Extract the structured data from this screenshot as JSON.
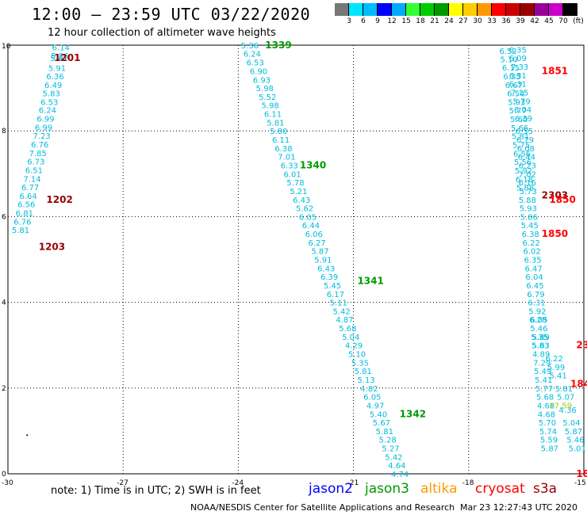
{
  "header": {
    "title": "12:00 – 23:59 UTC 03/22/2020",
    "subtitle": "12 hour collection of altimeter wave heights"
  },
  "color_scale": {
    "unit_label": "(ft)",
    "colors": [
      "#777777",
      "#00e5ff",
      "#00bbff",
      "#0000ff",
      "#00aaff",
      "#33ff33",
      "#00cc00",
      "#009900",
      "#ffff00",
      "#ffcc00",
      "#ff9900",
      "#ff0000",
      "#cc0000",
      "#990000",
      "#990099",
      "#cc00cc",
      "#000000"
    ],
    "labels": [
      "3",
      "6",
      "9",
      "12",
      "15",
      "18",
      "21",
      "24",
      "27",
      "30",
      "33",
      "36",
      "39",
      "42",
      "45",
      "70"
    ]
  },
  "note": "note:  1) Time is in UTC;  2) SWH is in feet",
  "satellites": [
    {
      "name": "jason2",
      "color": "#0000ff"
    },
    {
      "name": "jason3",
      "color": "#009900"
    },
    {
      "name": "altika",
      "color": "#ff9900"
    },
    {
      "name": "cryosat",
      "color": "#ff0000"
    },
    {
      "name": "s3a",
      "color": "#990000"
    }
  ],
  "footer": {
    "credit": "NOAA/NESDIS Center for Satellite Applications and Research",
    "generated": "Mar 23 12:27:43 UTC 2020"
  },
  "chart_data": {
    "type": "scatter",
    "xlim": [
      -30,
      -15
    ],
    "ylim": [
      0,
      10
    ],
    "x_ticks": [
      "-30",
      "-27",
      "-24",
      "-21",
      "-18",
      "-15"
    ],
    "y_ticks": [
      "0",
      "2",
      "4",
      "6",
      "8",
      "10"
    ],
    "grid": true,
    "value_color": "#00bbdd",
    "passes": [
      {
        "label": "1201",
        "color": "#990000",
        "x": -28.8,
        "y": 9.7
      },
      {
        "label": "1202",
        "color": "#990000",
        "x": -29.0,
        "y": 6.4
      },
      {
        "label": "1203",
        "color": "#990000",
        "x": -29.2,
        "y": 5.3
      },
      {
        "label": "1339",
        "color": "#009900",
        "x": -23.3,
        "y": 10.0
      },
      {
        "label": "1340",
        "color": "#009900",
        "x": -22.4,
        "y": 7.2
      },
      {
        "label": "1341",
        "color": "#009900",
        "x": -20.9,
        "y": 4.5
      },
      {
        "label": "1342",
        "color": "#009900",
        "x": -19.8,
        "y": 1.4
      },
      {
        "label": "1851",
        "color": "#ff0000",
        "x": -16.1,
        "y": 9.4
      },
      {
        "label": "2303",
        "color": "#990000",
        "x": -16.1,
        "y": 6.5
      },
      {
        "label": "1850",
        "color": "#ff0000",
        "x": -16.1,
        "y": 5.6
      },
      {
        "label": "1850",
        "color": "#ff0000",
        "x": -15.9,
        "y": 6.4
      },
      {
        "label": "23",
        "color": "#ff0000",
        "x": -15.2,
        "y": 3.0
      },
      {
        "label": "184",
        "color": "#ff0000",
        "x": -15.35,
        "y": 2.1
      },
      {
        "label": "18",
        "color": "#ff0000",
        "x": -15.2,
        "y": 0.0
      }
    ],
    "tracks": [
      {
        "name": "track-1200",
        "points": [
          {
            "x": -28.85,
            "y": 9.95,
            "v": "6.14"
          },
          {
            "x": -28.88,
            "y": 9.76,
            "v": "5.86"
          },
          {
            "x": -28.9,
            "y": 9.7,
            "v": "5.41"
          },
          {
            "x": -28.95,
            "y": 9.47,
            "v": "5.91"
          },
          {
            "x": -29.0,
            "y": 9.28,
            "v": "6.36"
          },
          {
            "x": -29.05,
            "y": 9.08,
            "v": "6.49"
          },
          {
            "x": -29.1,
            "y": 8.88,
            "v": "5.83"
          },
          {
            "x": -29.15,
            "y": 8.68,
            "v": "6.53"
          },
          {
            "x": -29.2,
            "y": 8.49,
            "v": "6.24"
          },
          {
            "x": -29.25,
            "y": 8.29,
            "v": "6.99"
          },
          {
            "x": -29.3,
            "y": 8.09,
            "v": "6.99"
          },
          {
            "x": -29.35,
            "y": 7.89,
            "v": "7.23"
          },
          {
            "x": -29.4,
            "y": 7.69,
            "v": "6.76"
          },
          {
            "x": -29.45,
            "y": 7.49,
            "v": "7.85"
          },
          {
            "x": -29.5,
            "y": 7.29,
            "v": "6.73"
          },
          {
            "x": -29.55,
            "y": 7.09,
            "v": "6.51"
          },
          {
            "x": -29.6,
            "y": 6.89,
            "v": "7.14"
          },
          {
            "x": -29.65,
            "y": 6.69,
            "v": "6.77"
          },
          {
            "x": -29.7,
            "y": 6.49,
            "v": "6.64"
          },
          {
            "x": -29.75,
            "y": 6.29,
            "v": "6.56"
          },
          {
            "x": -29.8,
            "y": 6.09,
            "v": "6.81"
          },
          {
            "x": -29.85,
            "y": 5.89,
            "v": "6.76"
          },
          {
            "x": -29.9,
            "y": 5.69,
            "v": "5.81"
          }
        ]
      },
      {
        "name": "track-1339",
        "points": [
          {
            "x": -23.93,
            "y": 10.0,
            "v": "5.36"
          },
          {
            "x": -23.87,
            "y": 9.81,
            "v": "6.24"
          },
          {
            "x": -23.79,
            "y": 9.6,
            "v": "6.53"
          },
          {
            "x": -23.7,
            "y": 9.4,
            "v": "6.90"
          },
          {
            "x": -23.62,
            "y": 9.2,
            "v": "6.93"
          },
          {
            "x": -23.54,
            "y": 9.0,
            "v": "5.98"
          },
          {
            "x": -23.47,
            "y": 8.8,
            "v": "5.52"
          },
          {
            "x": -23.4,
            "y": 8.6,
            "v": "5.98"
          },
          {
            "x": -23.33,
            "y": 8.4,
            "v": "6.11"
          },
          {
            "x": -23.26,
            "y": 8.2,
            "v": "5.81"
          },
          {
            "x": -23.18,
            "y": 8.0,
            "v": "5.80"
          },
          {
            "x": -23.12,
            "y": 7.8,
            "v": "6.11"
          },
          {
            "x": -23.05,
            "y": 7.6,
            "v": "6.38"
          },
          {
            "x": -22.97,
            "y": 7.4,
            "v": "7.01"
          },
          {
            "x": -22.9,
            "y": 7.2,
            "v": "6.33"
          },
          {
            "x": -22.82,
            "y": 7.0,
            "v": "6.01"
          },
          {
            "x": -22.74,
            "y": 6.8,
            "v": "5.78"
          },
          {
            "x": -22.66,
            "y": 6.6,
            "v": "5.21"
          },
          {
            "x": -22.58,
            "y": 6.4,
            "v": "6.43"
          },
          {
            "x": -22.5,
            "y": 6.2,
            "v": "5.62"
          },
          {
            "x": -22.42,
            "y": 6.0,
            "v": "6.05"
          },
          {
            "x": -22.34,
            "y": 5.8,
            "v": "6.44"
          },
          {
            "x": -22.26,
            "y": 5.6,
            "v": "6.06"
          },
          {
            "x": -22.18,
            "y": 5.4,
            "v": "6.27"
          },
          {
            "x": -22.1,
            "y": 5.2,
            "v": "5.87"
          },
          {
            "x": -22.02,
            "y": 5.0,
            "v": "5.91"
          },
          {
            "x": -21.94,
            "y": 4.8,
            "v": "6.43"
          },
          {
            "x": -21.86,
            "y": 4.6,
            "v": "6.39"
          },
          {
            "x": -21.78,
            "y": 4.4,
            "v": "5.45"
          },
          {
            "x": -21.7,
            "y": 4.2,
            "v": "6.17"
          },
          {
            "x": -21.62,
            "y": 4.0,
            "v": "5.11"
          },
          {
            "x": -21.54,
            "y": 3.8,
            "v": "5.42"
          },
          {
            "x": -21.46,
            "y": 3.6,
            "v": "4.87"
          },
          {
            "x": -21.38,
            "y": 3.4,
            "v": "5.68"
          },
          {
            "x": -21.3,
            "y": 3.2,
            "v": "5.04"
          },
          {
            "x": -21.22,
            "y": 3.0,
            "v": "4.29"
          },
          {
            "x": -21.14,
            "y": 2.8,
            "v": "5.10"
          },
          {
            "x": -21.06,
            "y": 2.6,
            "v": "5.35"
          },
          {
            "x": -20.98,
            "y": 2.4,
            "v": "5.81"
          },
          {
            "x": -20.9,
            "y": 2.2,
            "v": "5.13"
          },
          {
            "x": -20.82,
            "y": 2.0,
            "v": "4.82"
          },
          {
            "x": -20.74,
            "y": 1.8,
            "v": "6.05"
          },
          {
            "x": -20.66,
            "y": 1.6,
            "v": "4.97"
          },
          {
            "x": -20.58,
            "y": 1.4,
            "v": "5.40"
          },
          {
            "x": -20.5,
            "y": 1.2,
            "v": "5.67"
          },
          {
            "x": -20.42,
            "y": 1.0,
            "v": "5.81"
          },
          {
            "x": -20.34,
            "y": 0.8,
            "v": "5.28"
          },
          {
            "x": -20.26,
            "y": 0.6,
            "v": "5.27"
          },
          {
            "x": -20.18,
            "y": 0.4,
            "v": "5.42"
          },
          {
            "x": -20.1,
            "y": 0.2,
            "v": "4.64"
          },
          {
            "x": -20.02,
            "y": 0.0,
            "v": "4.74"
          }
        ]
      },
      {
        "name": "track-1851",
        "points": [
          {
            "x": -17.2,
            "y": 9.87,
            "v": "6.52"
          },
          {
            "x": -16.95,
            "y": 9.9,
            "v": "6.35"
          },
          {
            "x": -17.18,
            "y": 9.68,
            "v": "5.10"
          },
          {
            "x": -16.95,
            "y": 9.7,
            "v": "6.09"
          },
          {
            "x": -17.13,
            "y": 9.48,
            "v": "6.15"
          },
          {
            "x": -16.9,
            "y": 9.5,
            "v": "7.33"
          },
          {
            "x": -17.1,
            "y": 9.28,
            "v": "6.35"
          },
          {
            "x": -16.95,
            "y": 9.3,
            "v": "6.31"
          },
          {
            "x": -17.05,
            "y": 9.08,
            "v": "6.67"
          },
          {
            "x": -16.95,
            "y": 9.1,
            "v": "6.31"
          },
          {
            "x": -17.0,
            "y": 8.88,
            "v": "6.54"
          },
          {
            "x": -16.9,
            "y": 8.9,
            "v": "7.15"
          },
          {
            "x": -16.98,
            "y": 8.68,
            "v": "5.93"
          },
          {
            "x": -16.85,
            "y": 8.7,
            "v": "5.79"
          },
          {
            "x": -16.95,
            "y": 8.48,
            "v": "5.77"
          },
          {
            "x": -16.82,
            "y": 8.5,
            "v": "6.04"
          },
          {
            "x": -16.92,
            "y": 8.28,
            "v": "5.60"
          },
          {
            "x": -16.8,
            "y": 8.3,
            "v": "6.39"
          },
          {
            "x": -16.9,
            "y": 8.08,
            "v": "5.66"
          },
          {
            "x": -16.78,
            "y": 8.0,
            "v": "6.55"
          },
          {
            "x": -16.88,
            "y": 7.88,
            "v": "5.81"
          },
          {
            "x": -16.76,
            "y": 7.8,
            "v": "6.79"
          },
          {
            "x": -16.86,
            "y": 7.68,
            "v": "5.75"
          },
          {
            "x": -16.74,
            "y": 7.6,
            "v": "6.08"
          },
          {
            "x": -16.84,
            "y": 7.48,
            "v": "6.56"
          },
          {
            "x": -16.72,
            "y": 7.4,
            "v": "6.44"
          },
          {
            "x": -16.82,
            "y": 7.28,
            "v": "5.56"
          },
          {
            "x": -16.7,
            "y": 7.2,
            "v": "6.23"
          },
          {
            "x": -16.8,
            "y": 7.08,
            "v": "5.92"
          },
          {
            "x": -16.7,
            "y": 7.0,
            "v": "7.02"
          },
          {
            "x": -16.78,
            "y": 6.88,
            "v": "6.18"
          },
          {
            "x": -16.7,
            "y": 6.8,
            "v": "6.16"
          },
          {
            "x": -16.76,
            "y": 6.68,
            "v": "5.88"
          },
          {
            "x": -16.68,
            "y": 6.6,
            "v": "5.73"
          },
          {
            "x": -16.7,
            "y": 6.4,
            "v": "5.88"
          },
          {
            "x": -16.68,
            "y": 6.2,
            "v": "5.93"
          },
          {
            "x": -16.66,
            "y": 6.0,
            "v": "5.86"
          },
          {
            "x": -16.64,
            "y": 5.8,
            "v": "5.45"
          },
          {
            "x": -16.62,
            "y": 5.6,
            "v": "6.38"
          },
          {
            "x": -16.6,
            "y": 5.4,
            "v": "6.22"
          },
          {
            "x": -16.58,
            "y": 5.2,
            "v": "6.02"
          },
          {
            "x": -16.56,
            "y": 5.0,
            "v": "6.35"
          },
          {
            "x": -16.54,
            "y": 4.8,
            "v": "6.47"
          },
          {
            "x": -16.52,
            "y": 4.6,
            "v": "6.04"
          },
          {
            "x": -16.5,
            "y": 4.4,
            "v": "6.45"
          },
          {
            "x": -16.48,
            "y": 4.2,
            "v": "6.79"
          },
          {
            "x": -16.46,
            "y": 4.0,
            "v": "6.31"
          },
          {
            "x": -16.44,
            "y": 3.8,
            "v": "5.92"
          },
          {
            "x": -16.42,
            "y": 3.6,
            "v": "6.28"
          },
          {
            "x": -16.4,
            "y": 3.4,
            "v": "5.46"
          },
          {
            "x": -16.38,
            "y": 3.2,
            "v": "5.35"
          },
          {
            "x": -16.36,
            "y": 3.0,
            "v": "5.83"
          },
          {
            "x": -16.34,
            "y": 2.8,
            "v": "4.89"
          },
          {
            "x": -16.32,
            "y": 2.6,
            "v": "7.29"
          },
          {
            "x": -16.3,
            "y": 2.4,
            "v": "5.49"
          },
          {
            "x": -16.28,
            "y": 2.2,
            "v": "5.41"
          },
          {
            "x": -16.26,
            "y": 2.0,
            "v": "5.77"
          },
          {
            "x": -16.24,
            "y": 1.8,
            "v": "5.68"
          },
          {
            "x": -16.22,
            "y": 1.6,
            "v": "4.68"
          },
          {
            "x": -16.2,
            "y": 1.4,
            "v": "4.68"
          },
          {
            "x": -16.18,
            "y": 1.2,
            "v": "5.70"
          },
          {
            "x": -16.16,
            "y": 1.0,
            "v": "5.74"
          },
          {
            "x": -16.14,
            "y": 0.8,
            "v": "5.59"
          },
          {
            "x": -16.12,
            "y": 0.6,
            "v": "5.87"
          }
        ]
      },
      {
        "name": "track-2303",
        "points": [
          {
            "x": -16.4,
            "y": 3.6,
            "v": "6.05"
          },
          {
            "x": -16.35,
            "y": 3.2,
            "v": "5.89"
          },
          {
            "x": -16.35,
            "y": 3.0,
            "v": "5.63"
          },
          {
            "x": -16.0,
            "y": 2.7,
            "v": "6.22"
          },
          {
            "x": -15.95,
            "y": 2.5,
            "v": "5.99"
          },
          {
            "x": -15.9,
            "y": 2.3,
            "v": "5.41"
          },
          {
            "x": -15.75,
            "y": 2.0,
            "v": "5.81"
          },
          {
            "x": -15.7,
            "y": 1.8,
            "v": "5.07"
          },
          {
            "x": -15.65,
            "y": 1.5,
            "v": "4.36"
          },
          {
            "x": -15.55,
            "y": 1.2,
            "v": "5.04"
          },
          {
            "x": -15.5,
            "y": 1.0,
            "v": "5.87"
          },
          {
            "x": -15.45,
            "y": 0.8,
            "v": "5.46"
          },
          {
            "x": -15.4,
            "y": 0.6,
            "v": "5.01"
          }
        ]
      }
    ],
    "highlight_values": [
      {
        "x": -15.9,
        "y": 1.6,
        "v": "17.59",
        "color": "#99cc00"
      }
    ],
    "isolated_marks": [
      {
        "x": -29.5,
        "y": 0.9
      }
    ]
  }
}
